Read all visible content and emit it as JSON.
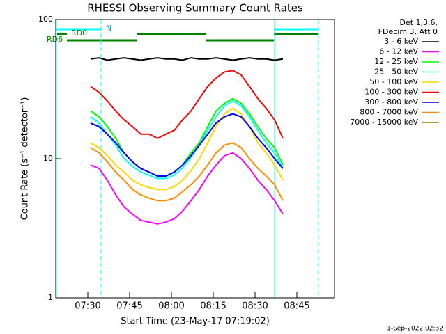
{
  "chart_data": {
    "type": "line",
    "title": "RHESSI Observing Summary Count Rates",
    "x_label": "Start Time (23-May-17 07:19:02)",
    "y_label": "Count Rate (s⁻¹ detector⁻¹)",
    "footer": "1-Sep-2022 02:32",
    "legend_header": [
      "Det 1,3,6,",
      "FDecim 3, Att 0"
    ],
    "annotations": [
      "N",
      "RD0",
      "RD6"
    ],
    "log_y": true,
    "ylim": [
      1,
      100
    ],
    "yticks": [
      1,
      10,
      100
    ],
    "xlim": [
      18.5,
      118.5
    ],
    "xticks": [
      {
        "value": 30,
        "label": "07:30"
      },
      {
        "value": 45,
        "label": "07:45"
      },
      {
        "value": 60,
        "label": "08:00"
      },
      {
        "value": 75,
        "label": "08:15"
      },
      {
        "value": 90,
        "label": "08:30"
      },
      {
        "value": 105,
        "label": "08:45"
      }
    ],
    "x": [
      31,
      34,
      37,
      40,
      43,
      46,
      49,
      52,
      55,
      58,
      61,
      64,
      67,
      70,
      73,
      76,
      79,
      82,
      85,
      88,
      91,
      94,
      97,
      100
    ],
    "series": [
      {
        "name": "3 - 6 keV",
        "color": "#000000",
        "values": [
          52,
          53,
          51,
          52,
          53,
          52,
          51,
          52,
          53,
          52,
          52,
          51,
          53,
          52,
          52,
          53,
          52,
          51,
          52,
          53,
          52,
          52,
          51,
          52
        ]
      },
      {
        "name": "6 - 12 keV",
        "color": "#ff00ff",
        "values": [
          9,
          8.5,
          7,
          5.5,
          4.5,
          4,
          3.6,
          3.5,
          3.4,
          3.5,
          3.7,
          4.2,
          5,
          6,
          7.5,
          9,
          10.5,
          11,
          10,
          8.5,
          7,
          6,
          5,
          4
        ]
      },
      {
        "name": "12 - 25 keV",
        "color": "#00ff00",
        "values": [
          22,
          20,
          17,
          14,
          11,
          9.5,
          8.5,
          8,
          7.5,
          7.5,
          8,
          9,
          11,
          13,
          17,
          22,
          25,
          27,
          25,
          21,
          17,
          14,
          12,
          9
        ]
      },
      {
        "name": "25 - 50 keV",
        "color": "#00ffff",
        "values": [
          20,
          18,
          15,
          12.5,
          10,
          8.8,
          8,
          7.6,
          7.2,
          7.2,
          7.6,
          8.6,
          10.2,
          12.5,
          16,
          20,
          24,
          26,
          24,
          20,
          16,
          13,
          11,
          8.5
        ]
      },
      {
        "name": "50 - 100 keV",
        "color": "#ffd700",
        "values": [
          13,
          12,
          10.5,
          9,
          8,
          7,
          6.5,
          6.2,
          6,
          6,
          6.3,
          7,
          8.2,
          10,
          13,
          17,
          21,
          23,
          21,
          17,
          13,
          11,
          9,
          7
        ]
      },
      {
        "name": "100 - 300 keV",
        "color": "#ff0000",
        "values": [
          33,
          30,
          26,
          22,
          19,
          17,
          15,
          15,
          14,
          15,
          16,
          19,
          22,
          27,
          33,
          38,
          42,
          43,
          40,
          33,
          27,
          23,
          19,
          14
        ]
      },
      {
        "name": "300 - 800 keV",
        "color": "#0000ff",
        "values": [
          18,
          17,
          15,
          13,
          11,
          9.5,
          8.5,
          8,
          7.5,
          7.5,
          8,
          9,
          10.5,
          12.5,
          15,
          18,
          20,
          21,
          20,
          17,
          14,
          12,
          10,
          8.5
        ]
      },
      {
        "name": "800 - 7000 keV",
        "color": "#ff8c00",
        "values": [
          12,
          11,
          9.5,
          8,
          7,
          6,
          5.5,
          5.2,
          5,
          5,
          5.2,
          5.8,
          6.5,
          7.5,
          9,
          11,
          12.5,
          13,
          12,
          10,
          8.5,
          7.5,
          6.5,
          5
        ]
      },
      {
        "name": "7000 - 15000 keV",
        "color": "#808000",
        "values": [
          null,
          null,
          null,
          null,
          null,
          null,
          null,
          null,
          null,
          null,
          null,
          null,
          null,
          null,
          null,
          null,
          null,
          null,
          null,
          null,
          null,
          null,
          null,
          null
        ]
      }
    ]
  }
}
